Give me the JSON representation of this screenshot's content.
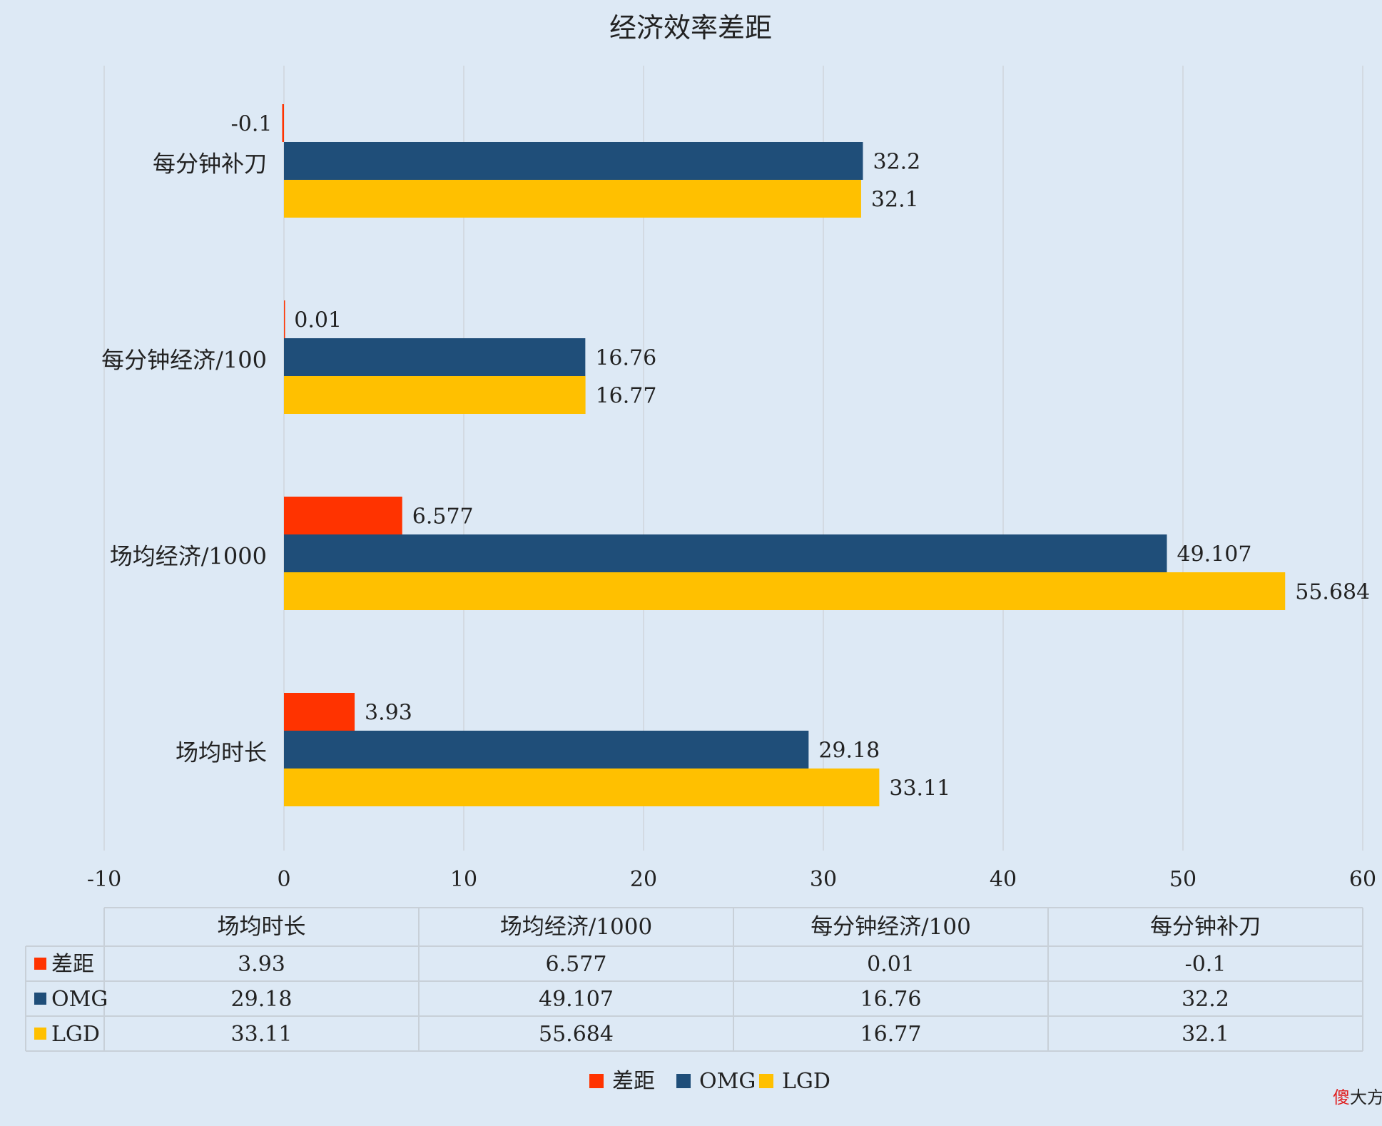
{
  "chart_data": {
    "type": "bar",
    "orientation": "horizontal",
    "title": "经济效率差距",
    "categories": [
      "场均时长",
      "场均经济/1000",
      "每分钟经济/100",
      "每分钟补刀"
    ],
    "series": [
      {
        "name": "差距",
        "color": "#ff3300",
        "values": [
          3.93,
          6.577,
          0.01,
          -0.1
        ],
        "labels": [
          "3.93",
          "6.577",
          "0.01",
          "-0.1"
        ]
      },
      {
        "name": "OMG",
        "color": "#1f4e79",
        "values": [
          29.18,
          49.107,
          16.76,
          32.2
        ],
        "labels": [
          "29.18",
          "49.107",
          "16.76",
          "32.2"
        ]
      },
      {
        "name": "LGD",
        "color": "#ffc000",
        "values": [
          33.11,
          55.684,
          16.77,
          32.1
        ],
        "labels": [
          "33.11",
          "55.684",
          "16.77",
          "32.1"
        ]
      }
    ],
    "xlim": [
      -10,
      60
    ],
    "xticks": [
      "-10",
      "0",
      "10",
      "20",
      "30",
      "40",
      "50",
      "60"
    ],
    "grid": true,
    "legend": "bottom",
    "data_table": true
  },
  "watermark": "傻大方",
  "colors": {
    "background": "#dde9f5",
    "grid": "#d0d6dc",
    "table_border": "#c8d0d8"
  }
}
